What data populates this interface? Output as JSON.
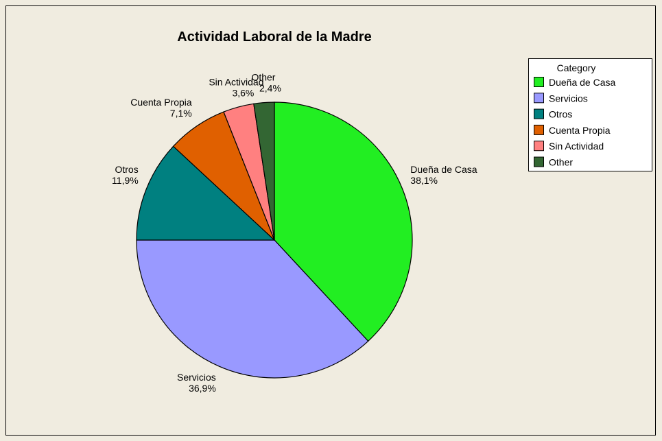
{
  "chart_data": {
    "type": "pie",
    "title": "Actividad Laboral de la Madre",
    "legend_title": "Category",
    "categories": [
      "Dueña de Casa",
      "Servicios",
      "Otros",
      "Cuenta Propia",
      "Sin Actividad",
      "Other"
    ],
    "values": [
      38.1,
      36.9,
      11.9,
      7.1,
      3.6,
      2.4
    ],
    "value_labels": [
      "38,1%",
      "36,9%",
      "11,9%",
      "7,1%",
      "3,6%",
      "2,4%"
    ],
    "colors": [
      "#22ee22",
      "#9999ff",
      "#008080",
      "#e06000",
      "#ff8080",
      "#336633"
    ],
    "legend": "upper right"
  }
}
